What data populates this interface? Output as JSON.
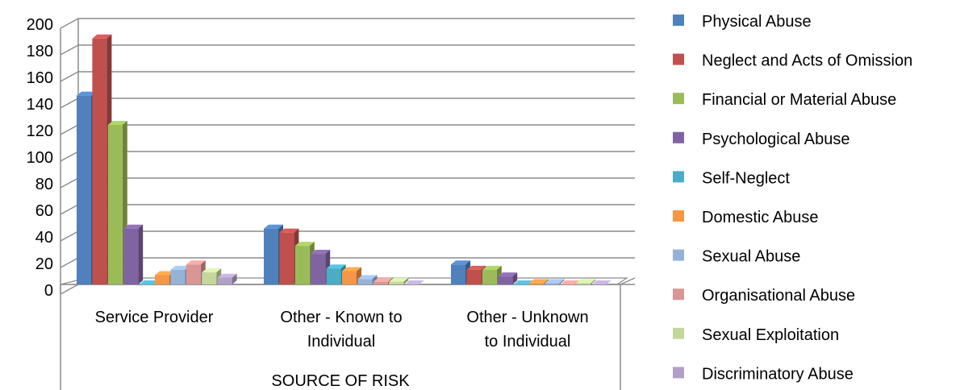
{
  "chart_data": {
    "type": "bar",
    "style": "3d-clustered-column",
    "xlabel": "SOURCE OF RISK",
    "ylabel": "",
    "ylim": [
      0,
      200
    ],
    "yticks": [
      0,
      20,
      40,
      60,
      80,
      100,
      120,
      140,
      160,
      180,
      200
    ],
    "grid": true,
    "legend_position": "right",
    "categories": [
      [
        "Service Provider"
      ],
      [
        "Other - Known to",
        "Individual"
      ],
      [
        "Other - Unknown",
        "to Individual"
      ]
    ],
    "series": [
      {
        "name": "Physical Abuse",
        "color": "#4F81BD",
        "values": [
          142,
          42,
          15
        ]
      },
      {
        "name": "Neglect and Acts of Omission",
        "color": "#C0504D",
        "values": [
          185,
          39,
          11
        ]
      },
      {
        "name": "Financial or Material Abuse",
        "color": "#9BBB59",
        "values": [
          120,
          29,
          11
        ]
      },
      {
        "name": "Psychological Abuse",
        "color": "#8064A2",
        "values": [
          42,
          23,
          6
        ]
      },
      {
        "name": "Self-Neglect",
        "color": "#4BACC6",
        "values": [
          0,
          12,
          0
        ]
      },
      {
        "name": "Domestic Abuse",
        "color": "#F79646",
        "values": [
          7,
          10,
          1
        ]
      },
      {
        "name": "Sexual Abuse",
        "color": "#95B3D7",
        "values": [
          11,
          4,
          1
        ]
      },
      {
        "name": "Organisational Abuse",
        "color": "#DA9694",
        "values": [
          15,
          2,
          0
        ]
      },
      {
        "name": "Sexual Exploitation",
        "color": "#C4D79B",
        "values": [
          9,
          2,
          1
        ]
      },
      {
        "name": "Discriminatory Abuse",
        "color": "#B1A0C7",
        "values": [
          5,
          0,
          0
        ]
      }
    ]
  }
}
